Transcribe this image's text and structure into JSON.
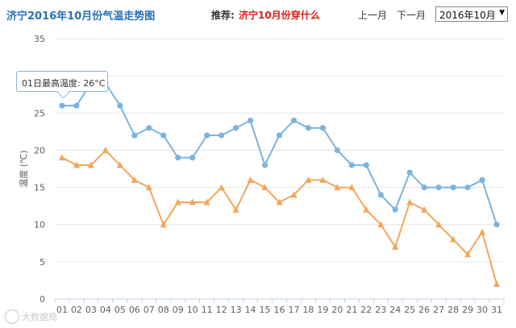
{
  "header": {
    "title": "济宁2016年10月份气温走势图",
    "recommend_label": "推荐:",
    "recommend_link": "济宁10月份穿什么",
    "prev_month": "上一月",
    "next_month": "下一月",
    "month_selected": "2016年10月"
  },
  "tooltip": {
    "text": "01日最高温度: 26°C"
  },
  "watermark": {
    "text": "大数据局"
  },
  "chart_data": {
    "type": "line",
    "title": "",
    "xlabel": "",
    "ylabel": "温度 (℃)",
    "ylim": [
      0,
      35
    ],
    "yticks": [
      0,
      5,
      10,
      15,
      20,
      25,
      30,
      35
    ],
    "categories": [
      "01",
      "02",
      "03",
      "04",
      "05",
      "06",
      "07",
      "08",
      "09",
      "10",
      "11",
      "12",
      "13",
      "14",
      "15",
      "16",
      "17",
      "18",
      "19",
      "20",
      "21",
      "22",
      "23",
      "24",
      "25",
      "26",
      "27",
      "28",
      "29",
      "30",
      "31"
    ],
    "series": [
      {
        "values": [
          26,
          26,
          29,
          29,
          26,
          22,
          23,
          22,
          19,
          19,
          22,
          22,
          23,
          24,
          18,
          22,
          24,
          23,
          23,
          20,
          18,
          18,
          14,
          12,
          17,
          15,
          15,
          15,
          15,
          16,
          10
        ],
        "color": "#7cb3e0",
        "marker": "circle"
      },
      {
        "values": [
          19,
          18,
          18,
          20,
          18,
          16,
          15,
          10,
          13,
          13,
          13,
          15,
          12,
          16,
          15,
          13,
          14,
          16,
          16,
          15,
          15,
          12,
          10,
          7,
          13,
          12,
          10,
          8,
          6,
          9,
          2
        ],
        "color": "#f2a65a",
        "marker": "triangle"
      }
    ],
    "grid": true,
    "legend": "none"
  }
}
